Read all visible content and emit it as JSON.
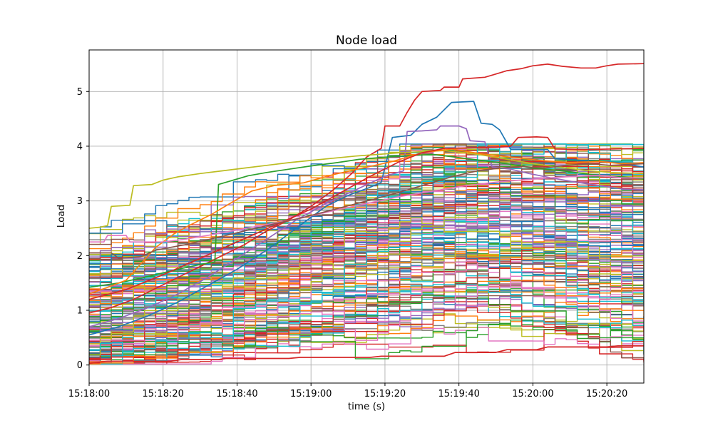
{
  "chart_data": {
    "type": "line",
    "title": "Node load",
    "xlabel": "time (s)",
    "ylabel": "Load",
    "x_tick_labels": [
      "15:18:00",
      "15:18:20",
      "15:18:40",
      "15:19:00",
      "15:19:20",
      "15:19:40",
      "15:20:00",
      "15:20:20"
    ],
    "x_tick_seconds": [
      0,
      20,
      40,
      60,
      80,
      100,
      120,
      140
    ],
    "xlim_seconds": [
      0,
      150
    ],
    "y_ticks": [
      0,
      1,
      2,
      3,
      4,
      5
    ],
    "ylim": [
      -0.33,
      5.76
    ],
    "grid": true,
    "grid_color": "#b0b0b0",
    "legend": "none",
    "color_cycle": [
      "#1f77b4",
      "#ff7f0e",
      "#2ca02c",
      "#d62728",
      "#9467bd",
      "#8c564b",
      "#e377c2",
      "#7f7f7f",
      "#bcbd22",
      "#17becf"
    ],
    "featured_series": [
      {
        "name": "red-top-climber",
        "color": "#d62728",
        "points": [
          [
            0,
            0.95
          ],
          [
            6,
            1.05
          ],
          [
            12,
            1.2
          ],
          [
            18,
            1.4
          ],
          [
            24,
            1.6
          ],
          [
            30,
            1.8
          ],
          [
            36,
            2.0
          ],
          [
            42,
            2.2
          ],
          [
            48,
            2.45
          ],
          [
            54,
            2.65
          ],
          [
            60,
            2.9
          ],
          [
            66,
            3.2
          ],
          [
            71,
            3.5
          ],
          [
            75,
            3.8
          ],
          [
            79,
            3.96
          ],
          [
            80,
            4.37
          ],
          [
            84,
            4.37
          ],
          [
            86,
            4.62
          ],
          [
            88,
            4.84
          ],
          [
            90,
            5.0
          ],
          [
            95,
            5.02
          ],
          [
            96,
            5.08
          ],
          [
            100,
            5.08
          ],
          [
            101,
            5.23
          ],
          [
            107,
            5.26
          ],
          [
            109,
            5.3
          ],
          [
            113,
            5.38
          ],
          [
            117,
            5.42
          ],
          [
            120,
            5.47
          ],
          [
            124,
            5.5
          ],
          [
            128,
            5.46
          ],
          [
            133,
            5.43
          ],
          [
            137,
            5.43
          ],
          [
            140,
            5.47
          ],
          [
            143,
            5.5
          ],
          [
            150,
            5.51
          ]
        ]
      },
      {
        "name": "blue-peak",
        "color": "#1f77b4",
        "points": [
          [
            0,
            0.55
          ],
          [
            8,
            0.7
          ],
          [
            16,
            0.9
          ],
          [
            24,
            1.15
          ],
          [
            32,
            1.45
          ],
          [
            40,
            1.75
          ],
          [
            48,
            2.1
          ],
          [
            56,
            2.5
          ],
          [
            64,
            2.9
          ],
          [
            70,
            3.1
          ],
          [
            76,
            3.25
          ],
          [
            79,
            3.34
          ],
          [
            82,
            4.16
          ],
          [
            87,
            4.2
          ],
          [
            90,
            4.4
          ],
          [
            94,
            4.53
          ],
          [
            98,
            4.8
          ],
          [
            104,
            4.82
          ],
          [
            106,
            4.42
          ],
          [
            109,
            4.4
          ],
          [
            111,
            4.3
          ],
          [
            114,
            3.94
          ],
          [
            124,
            3.94
          ],
          [
            126,
            3.77
          ],
          [
            131,
            3.75
          ],
          [
            137,
            3.72
          ],
          [
            143,
            3.7
          ],
          [
            150,
            3.62
          ]
        ]
      },
      {
        "name": "purple-peak",
        "color": "#9467bd",
        "points": [
          [
            0,
            0.7
          ],
          [
            8,
            0.85
          ],
          [
            16,
            1.05
          ],
          [
            24,
            1.3
          ],
          [
            32,
            1.6
          ],
          [
            40,
            1.95
          ],
          [
            48,
            2.3
          ],
          [
            56,
            2.65
          ],
          [
            64,
            2.95
          ],
          [
            72,
            3.2
          ],
          [
            80,
            3.45
          ],
          [
            85,
            3.55
          ],
          [
            86,
            4.27
          ],
          [
            90,
            4.28
          ],
          [
            94,
            4.3
          ],
          [
            95,
            4.37
          ],
          [
            100,
            4.37
          ],
          [
            102,
            4.32
          ],
          [
            103,
            4.1
          ],
          [
            107,
            4.08
          ],
          [
            109,
            3.62
          ],
          [
            114,
            3.58
          ],
          [
            119,
            3.5
          ],
          [
            125,
            3.42
          ],
          [
            131,
            3.35
          ],
          [
            138,
            3.28
          ],
          [
            144,
            3.22
          ],
          [
            150,
            3.2
          ]
        ]
      },
      {
        "name": "olive-early-riser",
        "color": "#bcbd22",
        "points": [
          [
            0,
            2.5
          ],
          [
            3,
            2.52
          ],
          [
            5,
            2.55
          ],
          [
            6,
            2.9
          ],
          [
            11,
            2.92
          ],
          [
            12,
            3.28
          ],
          [
            17,
            3.3
          ],
          [
            20,
            3.38
          ],
          [
            24,
            3.44
          ],
          [
            30,
            3.5
          ],
          [
            36,
            3.55
          ],
          [
            42,
            3.6
          ],
          [
            48,
            3.65
          ],
          [
            54,
            3.7
          ],
          [
            60,
            3.74
          ],
          [
            66,
            3.78
          ],
          [
            72,
            3.82
          ],
          [
            78,
            3.85
          ],
          [
            84,
            3.88
          ],
          [
            90,
            3.9
          ],
          [
            96,
            3.92
          ],
          [
            102,
            3.88
          ],
          [
            108,
            3.82
          ],
          [
            114,
            3.75
          ],
          [
            120,
            3.68
          ],
          [
            127,
            3.62
          ],
          [
            134,
            3.56
          ],
          [
            141,
            3.52
          ],
          [
            150,
            3.5
          ]
        ]
      },
      {
        "name": "green-step",
        "color": "#2ca02c",
        "points": [
          [
            0,
            1.42
          ],
          [
            8,
            1.5
          ],
          [
            16,
            1.62
          ],
          [
            24,
            1.75
          ],
          [
            31,
            1.85
          ],
          [
            34,
            1.88
          ],
          [
            35,
            3.3
          ],
          [
            39,
            3.38
          ],
          [
            43,
            3.46
          ],
          [
            48,
            3.52
          ],
          [
            54,
            3.58
          ],
          [
            60,
            3.64
          ],
          [
            67,
            3.7
          ],
          [
            73,
            3.76
          ],
          [
            80,
            3.8
          ],
          [
            87,
            3.83
          ],
          [
            93,
            3.85
          ],
          [
            99,
            3.8
          ],
          [
            106,
            3.74
          ],
          [
            113,
            3.68
          ],
          [
            120,
            3.6
          ],
          [
            128,
            3.55
          ],
          [
            136,
            3.48
          ],
          [
            144,
            3.44
          ],
          [
            150,
            3.4
          ]
        ]
      },
      {
        "name": "orange-riser",
        "color": "#ff7f0e",
        "points": [
          [
            0,
            1.3
          ],
          [
            5,
            1.42
          ],
          [
            10,
            1.55
          ],
          [
            14,
            1.85
          ],
          [
            18,
            2.15
          ],
          [
            23,
            2.4
          ],
          [
            27,
            2.55
          ],
          [
            33,
            2.75
          ],
          [
            38,
            2.95
          ],
          [
            44,
            3.18
          ],
          [
            50,
            3.28
          ],
          [
            58,
            3.33
          ],
          [
            66,
            3.48
          ],
          [
            74,
            3.6
          ],
          [
            82,
            3.72
          ],
          [
            90,
            3.88
          ],
          [
            98,
            3.95
          ],
          [
            106,
            3.86
          ],
          [
            114,
            3.8
          ],
          [
            122,
            3.74
          ],
          [
            130,
            3.7
          ],
          [
            138,
            3.72
          ],
          [
            144,
            3.68
          ],
          [
            150,
            3.7
          ]
        ]
      },
      {
        "name": "red-flat-four",
        "color": "#d62728",
        "points": [
          [
            0,
            1.2
          ],
          [
            10,
            1.38
          ],
          [
            20,
            1.65
          ],
          [
            30,
            1.95
          ],
          [
            40,
            2.25
          ],
          [
            50,
            2.55
          ],
          [
            60,
            2.85
          ],
          [
            68,
            3.15
          ],
          [
            76,
            3.45
          ],
          [
            84,
            3.72
          ],
          [
            90,
            3.88
          ],
          [
            96,
            3.96
          ],
          [
            110,
            3.98
          ],
          [
            114,
            4.0
          ],
          [
            116,
            4.16
          ],
          [
            121,
            4.17
          ],
          [
            124,
            4.16
          ],
          [
            126,
            3.95
          ],
          [
            134,
            3.94
          ],
          [
            142,
            3.95
          ],
          [
            150,
            3.96
          ]
        ]
      },
      {
        "name": "bottom-red",
        "color": "#d62728",
        "points": [
          [
            0,
            0.03
          ],
          [
            5,
            0.07
          ],
          [
            22,
            0.07
          ],
          [
            25,
            0.1
          ],
          [
            35,
            0.1
          ],
          [
            37,
            0.12
          ],
          [
            54,
            0.12
          ],
          [
            57,
            0.14
          ],
          [
            76,
            0.14
          ],
          [
            79,
            0.16
          ],
          [
            96,
            0.16
          ],
          [
            99,
            0.23
          ],
          [
            110,
            0.23
          ],
          [
            113,
            0.28
          ],
          [
            121,
            0.28
          ],
          [
            124,
            0.33
          ],
          [
            140,
            0.33
          ],
          [
            143,
            0.35
          ],
          [
            150,
            0.35
          ]
        ]
      },
      {
        "name": "pink-flat",
        "color": "#e377c2",
        "points": [
          [
            0,
            2.25
          ],
          [
            4,
            2.25
          ],
          [
            5,
            2.37
          ],
          [
            10,
            2.37
          ],
          [
            11,
            2.25
          ],
          [
            20,
            2.25
          ],
          [
            26,
            2.3
          ],
          [
            33,
            2.38
          ],
          [
            41,
            2.48
          ],
          [
            49,
            2.58
          ],
          [
            57,
            2.68
          ],
          [
            66,
            2.82
          ],
          [
            75,
            2.95
          ],
          [
            84,
            3.08
          ],
          [
            93,
            3.18
          ],
          [
            102,
            3.28
          ],
          [
            111,
            3.35
          ],
          [
            120,
            3.4
          ],
          [
            129,
            3.44
          ],
          [
            138,
            3.47
          ],
          [
            144,
            3.42
          ],
          [
            150,
            3.42
          ]
        ]
      },
      {
        "name": "brown-flat",
        "color": "#8c564b",
        "points": [
          [
            0,
            2.05
          ],
          [
            6,
            2.05
          ],
          [
            8,
            1.95
          ],
          [
            14,
            1.98
          ],
          [
            18,
            2.1
          ],
          [
            26,
            2.2
          ],
          [
            34,
            2.32
          ],
          [
            42,
            2.45
          ],
          [
            50,
            2.58
          ],
          [
            58,
            2.7
          ],
          [
            66,
            2.84
          ],
          [
            74,
            2.98
          ],
          [
            82,
            3.12
          ],
          [
            90,
            3.28
          ],
          [
            98,
            3.44
          ],
          [
            105,
            3.55
          ],
          [
            111,
            3.6
          ],
          [
            117,
            3.63
          ],
          [
            123,
            3.6
          ],
          [
            129,
            3.65
          ],
          [
            135,
            3.68
          ],
          [
            141,
            3.65
          ],
          [
            150,
            3.68
          ]
        ]
      }
    ],
    "background_ensemble": {
      "count": 160,
      "seed": 11,
      "sample_interval_s": 3,
      "start_value_range": [
        0.05,
        2.4
      ],
      "peak_value_max": 4.0,
      "peak_time_range_s": [
        85,
        120
      ],
      "end_drop_range": [
        0.15,
        1.1
      ],
      "value_clamp": [
        0.02,
        4.04
      ]
    }
  }
}
